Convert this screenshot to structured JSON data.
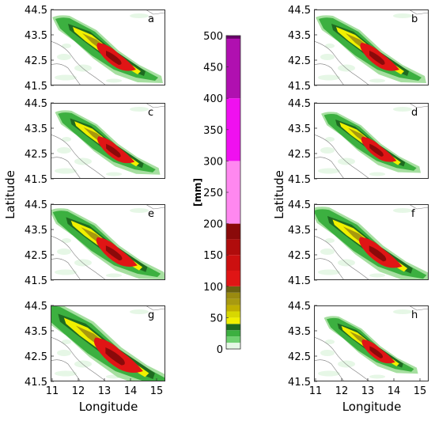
{
  "figure": {
    "left_axis": {
      "ylabel": "Latitude",
      "yticks": [
        "44.5",
        "43.5",
        "42.5",
        "41.5"
      ]
    },
    "right_axis": {
      "ylabel": "Latitude",
      "yticks": [
        "44.5",
        "43.5",
        "42.5",
        "41.5"
      ]
    },
    "xlabel": "Longitude",
    "xticks": [
      "11",
      "12",
      "13",
      "14",
      "15"
    ],
    "panels_left": [
      "a",
      "c",
      "e",
      "g"
    ],
    "panels_right": [
      "b",
      "d",
      "f",
      "h"
    ]
  },
  "colorbar": {
    "label": "[mm]",
    "ticks": [
      "500",
      "450",
      "400",
      "350",
      "300",
      "250",
      "200",
      "150",
      "100",
      "50",
      "0"
    ],
    "colors": {
      "very_light_green": "#e6f7e6",
      "light_green": "#a6dfa0",
      "green": "#3cb040",
      "dark_green": "#1e6b20",
      "yellow": "#f0f000",
      "olive": "#9a8a10",
      "red": "#e01515",
      "dark_red": "#8a0a0a",
      "pink": "#ff88f0",
      "magenta": "#f010f0",
      "purple": "#b010b0"
    }
  }
}
